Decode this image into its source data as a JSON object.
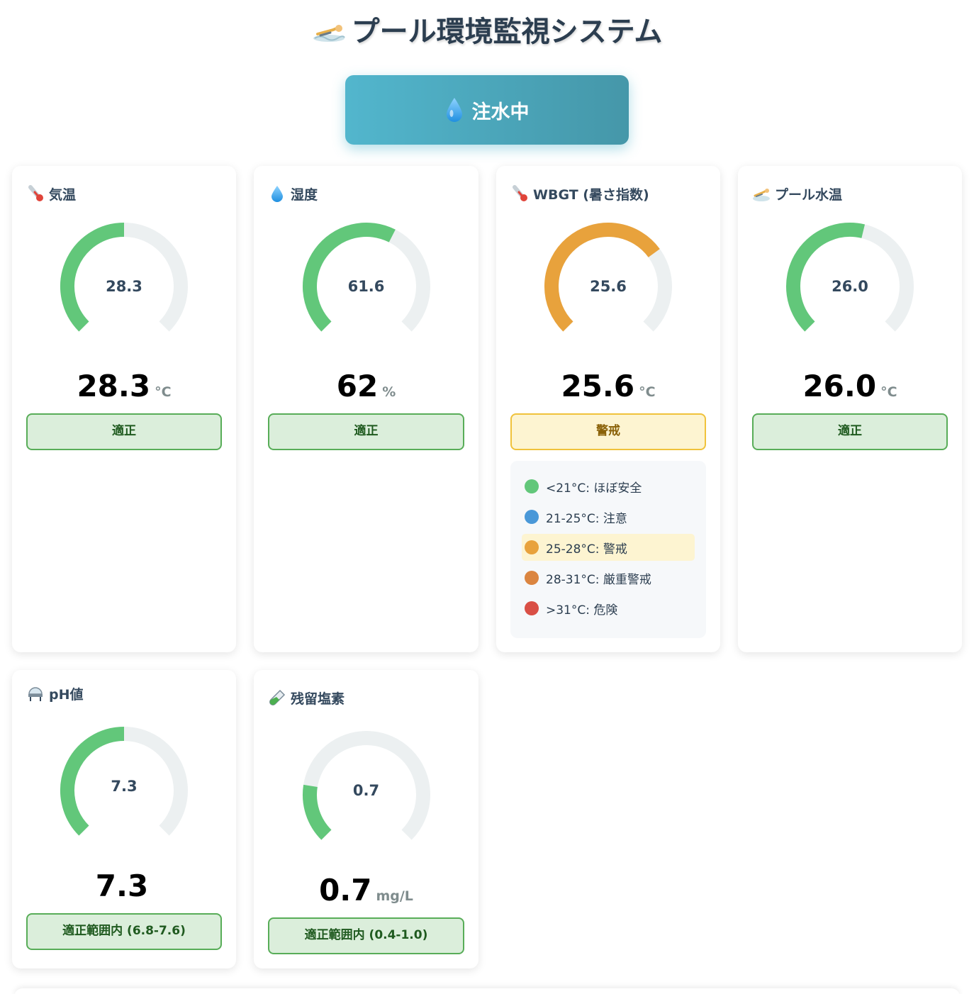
{
  "header": {
    "title": "プール環境監視システム",
    "title_icon": "swimmer-icon"
  },
  "status_button": {
    "label": "注水中",
    "icon": "water-drop-icon",
    "color": "#52b6cd"
  },
  "cards": {
    "air_temp": {
      "title": "気温",
      "icon": "thermometer-icon",
      "gauge_value": "28.3",
      "gauge_fraction": 0.5,
      "display_value": "28.3",
      "unit": "°C",
      "status": "適正",
      "status_type": "ok",
      "color": "#62c77a"
    },
    "humidity": {
      "title": "湿度",
      "icon": "water-drop-icon",
      "gauge_value": "61.6",
      "gauge_fraction": 0.6,
      "display_value": "62",
      "unit": "%",
      "status": "適正",
      "status_type": "ok",
      "color": "#62c77a"
    },
    "wbgt": {
      "title": "WBGT (暑さ指数)",
      "icon": "thermometer-icon",
      "gauge_value": "25.6",
      "gauge_fraction": 0.7,
      "display_value": "25.6",
      "unit": "°C",
      "status": "警戒",
      "status_type": "warn",
      "color": "#e8a23c",
      "legend": [
        {
          "label": "<21°C: ほぼ安全",
          "color": "#62c77a",
          "active": false
        },
        {
          "label": "21-25°C: 注意",
          "color": "#4a98d8",
          "active": false
        },
        {
          "label": "25-28°C: 警戒",
          "color": "#e8a23c",
          "active": true
        },
        {
          "label": "28-31°C: 厳重警戒",
          "color": "#db8540",
          "active": false
        },
        {
          "label": ">31°C: 危険",
          "color": "#d94f45",
          "active": false
        }
      ]
    },
    "pool_water_temp": {
      "title": "プール水温",
      "icon": "swimmer-icon",
      "gauge_value": "26.0",
      "gauge_fraction": 0.55,
      "display_value": "26.0",
      "unit": "°C",
      "status": "適正",
      "status_type": "ok",
      "color": "#62c77a"
    },
    "ph": {
      "title": "pH値",
      "icon": "flask-icon",
      "gauge_value": "7.3",
      "gauge_fraction": 0.5,
      "display_value": "7.3",
      "unit": "",
      "status": "適正範囲内 (6.8-7.6)",
      "status_type": "ok",
      "color": "#62c77a"
    },
    "chlorine": {
      "title": "残留塩素",
      "icon": "test-tube-icon",
      "gauge_value": "0.7",
      "gauge_fraction": 0.2,
      "display_value": "0.7",
      "unit": "mg/L",
      "status": "適正範囲内 (0.4-1.0)",
      "status_type": "ok",
      "color": "#62c77a"
    }
  }
}
